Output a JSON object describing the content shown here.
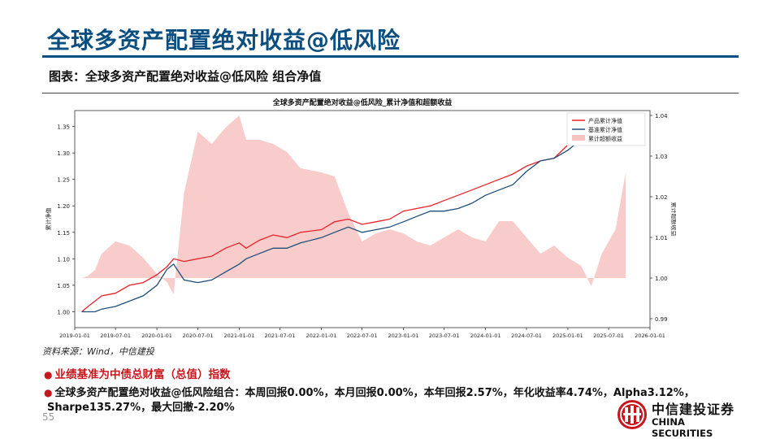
{
  "header": {
    "title": "全球多资产配置绝对收益@低风险",
    "subtitle": "图表：全球多资产配置绝对收益@低风险 组合净值"
  },
  "chart_data": {
    "type": "line",
    "title": "全球多资产配置绝对收益@低风险_累计净值和超额收益",
    "ylabel_left": "累计净值",
    "ylabel_right": "累计超额收益",
    "ylim_left": [
      0.97,
      1.38
    ],
    "ylim_right": [
      0.9878,
      1.0412
    ],
    "left_ticks": [
      "1.00",
      "1.05",
      "1.10",
      "1.15",
      "1.20",
      "1.25",
      "1.30",
      "1.35"
    ],
    "right_ticks": [
      "0.99",
      "1.00",
      "1.01",
      "1.02",
      "1.03",
      "1.04"
    ],
    "x_ticks": [
      "2019-01-01",
      "2019-07-01",
      "2020-01-01",
      "2020-07-01",
      "2021-01-01",
      "2021-07-01",
      "2022-01-01",
      "2022-07-01",
      "2023-01-01",
      "2023-07-01",
      "2024-01-01",
      "2024-07-01",
      "2025-01-01",
      "2025-07-01",
      "2026-01-01"
    ],
    "legend_position": "top-right",
    "x": [
      "2019-02-01",
      "2019-03-01",
      "2019-04-01",
      "2019-05-01",
      "2019-07-01",
      "2019-09-01",
      "2019-11-01",
      "2020-01-01",
      "2020-02-15",
      "2020-03-15",
      "2020-05-01",
      "2020-07-01",
      "2020-09-01",
      "2020-11-01",
      "2021-01-01",
      "2021-02-01",
      "2021-04-01",
      "2021-06-01",
      "2021-08-01",
      "2021-10-01",
      "2022-01-01",
      "2022-03-01",
      "2022-05-01",
      "2022-07-01",
      "2022-09-01",
      "2022-11-01",
      "2023-01-01",
      "2023-03-01",
      "2023-05-01",
      "2023-07-01",
      "2023-09-01",
      "2023-11-01",
      "2024-01-01",
      "2024-03-01",
      "2024-05-01",
      "2024-07-01",
      "2024-09-01",
      "2024-11-01",
      "2025-01-01",
      "2025-03-01",
      "2025-04-15",
      "2025-06-01",
      "2025-08-01",
      "2025-09-15"
    ],
    "series": [
      {
        "name": "产品累计净值",
        "color": "#e8232b",
        "axis": "left",
        "values": [
          1.0,
          1.01,
          1.02,
          1.03,
          1.035,
          1.05,
          1.055,
          1.07,
          1.085,
          1.1,
          1.095,
          1.1,
          1.105,
          1.12,
          1.13,
          1.12,
          1.135,
          1.145,
          1.14,
          1.15,
          1.155,
          1.17,
          1.175,
          1.165,
          1.17,
          1.175,
          1.19,
          1.195,
          1.2,
          1.21,
          1.22,
          1.23,
          1.24,
          1.25,
          1.26,
          1.275,
          1.285,
          1.29,
          1.315,
          1.335,
          1.32,
          1.345,
          1.36,
          1.37
        ]
      },
      {
        "name": "基准累计净值",
        "color": "#1f4e79",
        "axis": "left",
        "values": [
          1.0,
          1.0,
          1.0,
          1.005,
          1.01,
          1.02,
          1.03,
          1.05,
          1.08,
          1.09,
          1.06,
          1.055,
          1.06,
          1.075,
          1.09,
          1.1,
          1.11,
          1.12,
          1.12,
          1.13,
          1.14,
          1.15,
          1.16,
          1.15,
          1.155,
          1.16,
          1.17,
          1.18,
          1.19,
          1.19,
          1.195,
          1.205,
          1.22,
          1.23,
          1.24,
          1.265,
          1.285,
          1.29,
          1.305,
          1.325,
          1.33,
          1.335,
          1.33,
          1.325
        ]
      },
      {
        "name": "累计超额收益",
        "color": "#f8c3c3",
        "axis": "right",
        "type": "area",
        "values": [
          1.0,
          1.0005,
          1.002,
          1.006,
          1.009,
          1.008,
          1.005,
          1.001,
          0.999,
          0.996,
          1.021,
          1.036,
          1.033,
          1.037,
          1.04,
          1.034,
          1.034,
          1.033,
          1.031,
          1.027,
          1.026,
          1.025,
          1.016,
          1.009,
          1.011,
          1.012,
          1.011,
          1.009,
          1.008,
          1.01,
          1.012,
          1.01,
          1.009,
          1.014,
          1.014,
          1.01,
          1.006,
          1.008,
          1.005,
          1.003,
          0.998,
          1.006,
          1.012,
          1.026
        ]
      }
    ]
  },
  "source": "资料来源：Wind，中信建投",
  "notes": {
    "benchmark_prefix": "业绩基准为",
    "benchmark_name": "中债总财富（总值）指数",
    "summary_line1": "全球多资产配置绝对收益@低风险组合：本周回报0.00%，本月回报0.00%，本年回报2.57%，年化收益率4.74%，Alpha3.12%，",
    "summary_line2": "Sharpe135.27%，最大回撤-2.20%"
  },
  "footer": {
    "page_number": "55",
    "logo_cn": "中信建投证券",
    "logo_en": "CHINA SECURITIES"
  }
}
